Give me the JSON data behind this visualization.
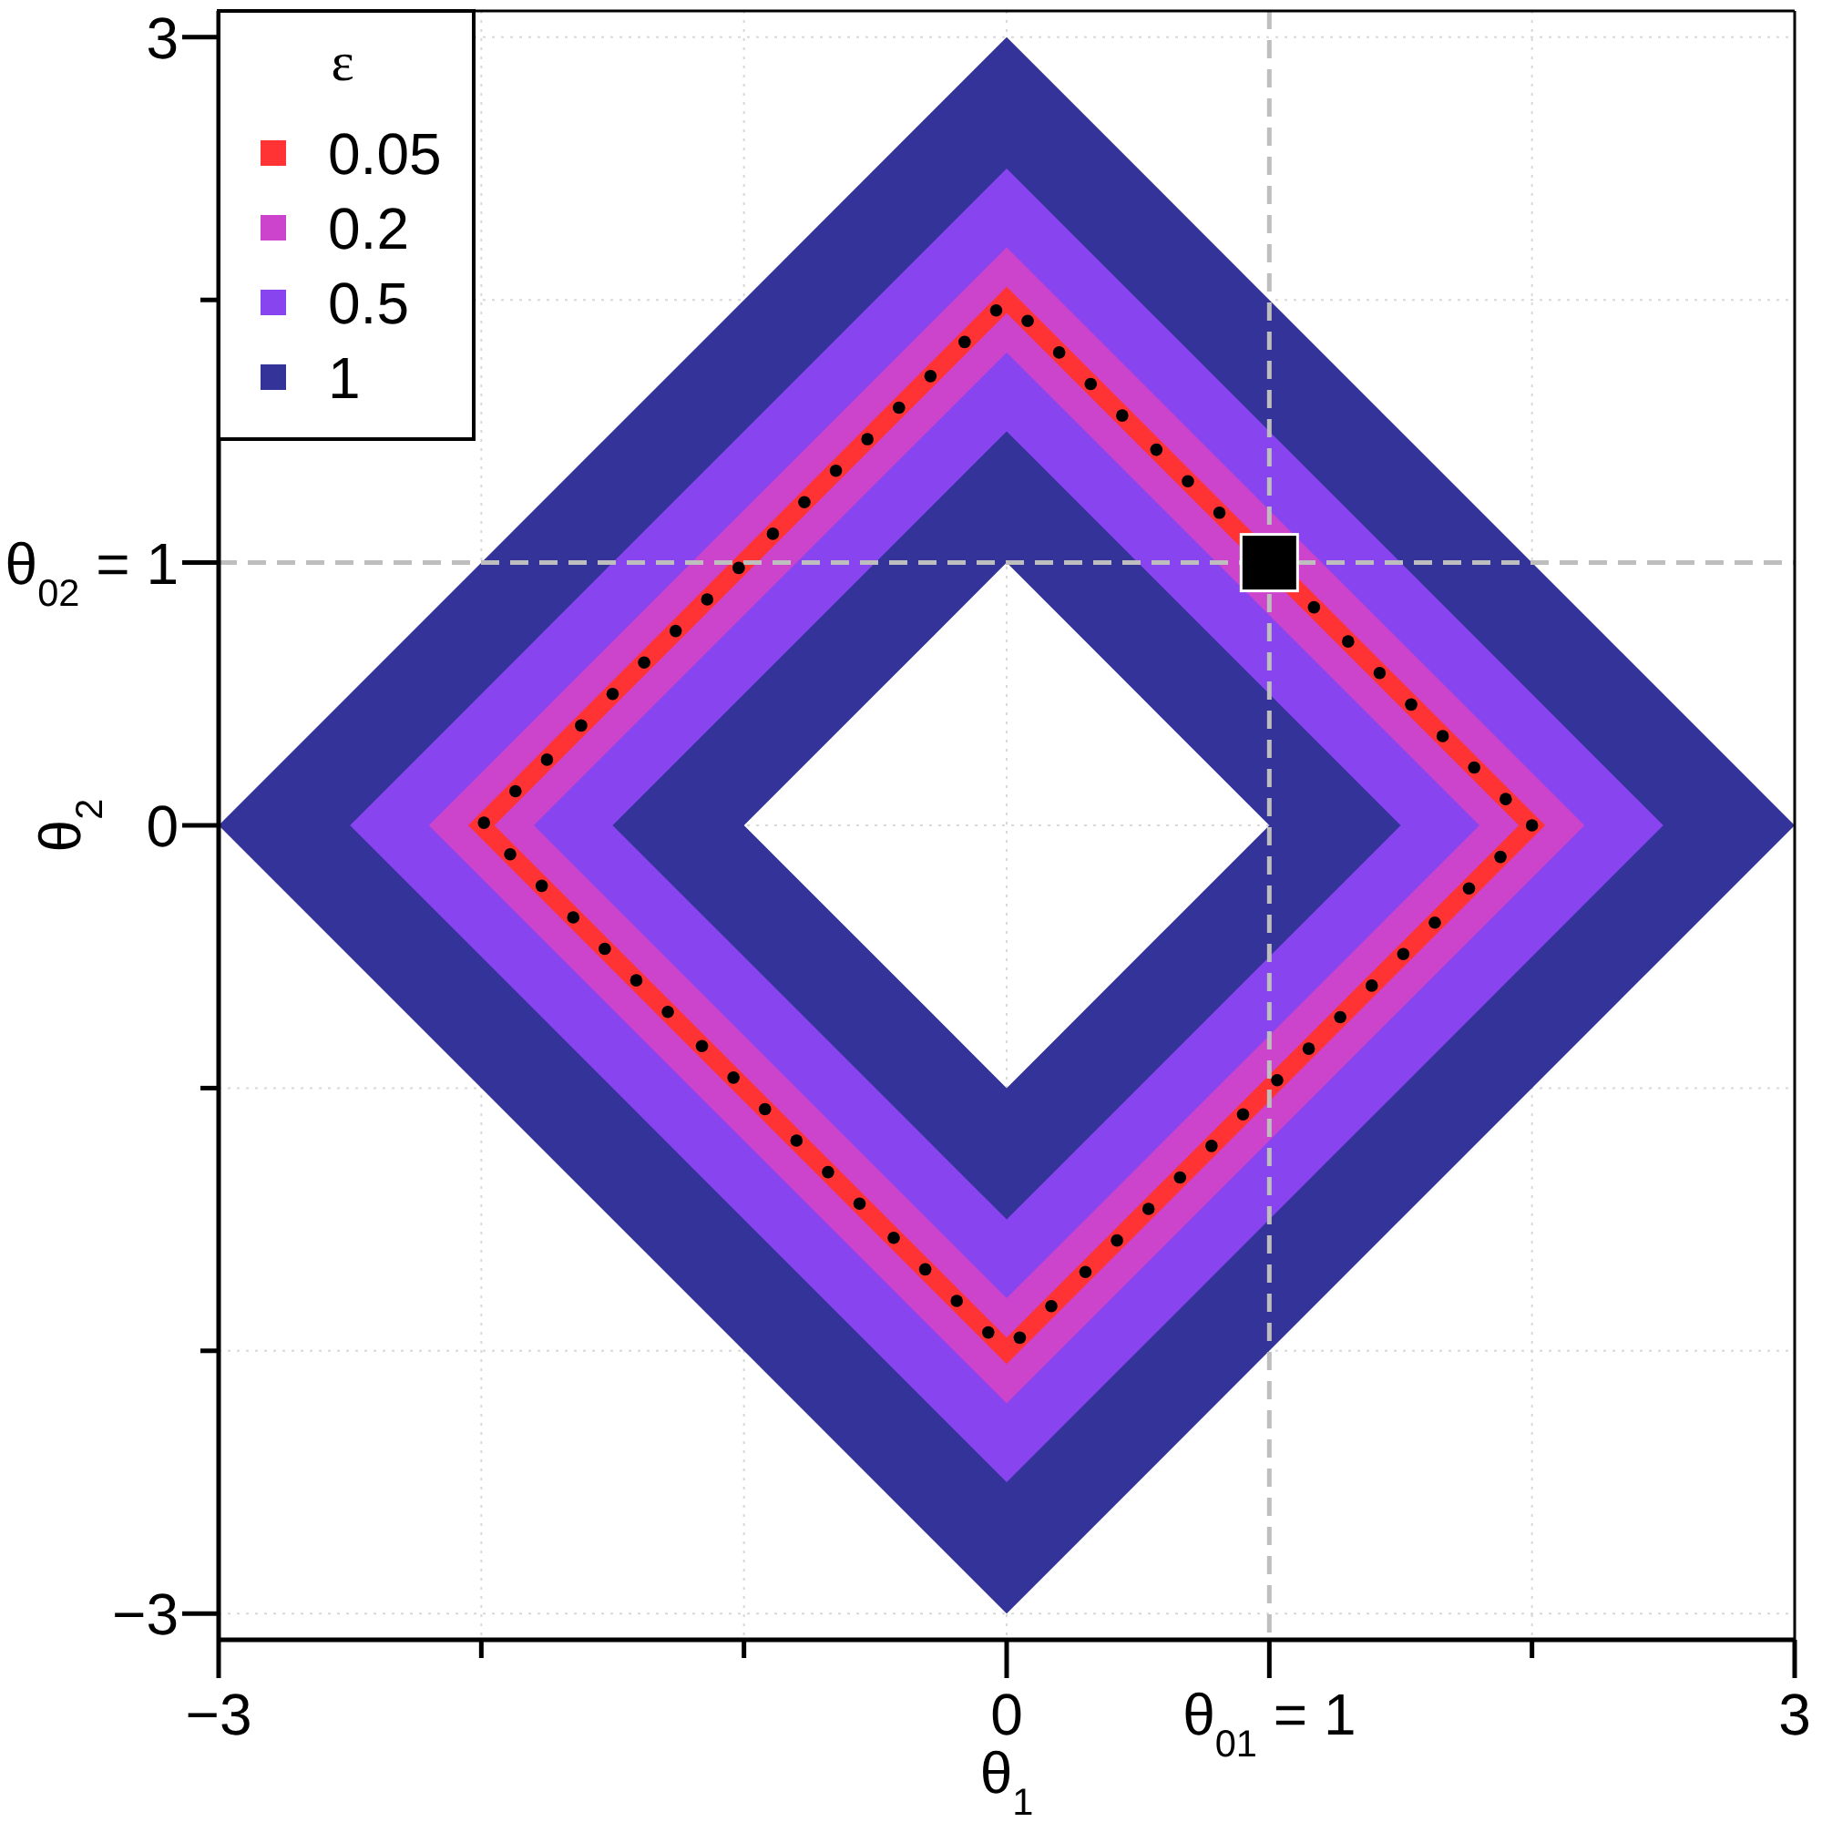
{
  "chart_data": {
    "type": "area",
    "xlabel": "θ$_{1}$",
    "ylabel": "θ$_{2}$",
    "legend_title": "ε",
    "xlim": [
      -3,
      3
    ],
    "ylim": [
      -3.1,
      3.1
    ],
    "xticks": [
      -3,
      {
        "value": -2,
        "label": null
      },
      {
        "value": -1,
        "label": null
      },
      0,
      {
        "value": 2,
        "label": null
      },
      3
    ],
    "yticks": [
      -3,
      {
        "value": -2,
        "label": null
      },
      {
        "value": -1,
        "label": null
      },
      0,
      {
        "value": 2,
        "label": null
      },
      3
    ],
    "grid": true,
    "legend": "top left",
    "ref_lines": [
      {
        "axis": "x",
        "value": 1,
        "label": "θ$_{01}$ = 1",
        "color": "#bebebe",
        "line_style": "dashed"
      },
      {
        "axis": "y",
        "value": 1,
        "label": "θ$_{02}$ = 1",
        "color": "#bebebe",
        "line_style": "dashed"
      }
    ],
    "series": [
      {
        "name": "0.05",
        "color": "#ff3333",
        "x": [
          -2.05,
          0,
          2.05,
          0,
          -2.05,
          -1.95,
          0,
          1.95,
          0,
          -1.95
        ],
        "values": [
          0,
          2.05,
          0,
          -2.05,
          0,
          0,
          -1.95,
          0,
          1.95,
          0
        ]
      },
      {
        "name": "0.2",
        "color": "#cc44cc",
        "x": [
          -2.2,
          0,
          2.2,
          0,
          -2.2,
          -1.8,
          0,
          1.8,
          0,
          -1.8
        ],
        "values": [
          0,
          2.2,
          0,
          -2.2,
          0,
          0,
          -1.8,
          0,
          1.8,
          0
        ]
      },
      {
        "name": "0.5",
        "color": "#8844ee",
        "x": [
          -2.5,
          0,
          2.5,
          0,
          -2.5,
          -1.5,
          0,
          1.5,
          0,
          -1.5
        ],
        "values": [
          0,
          2.5,
          0,
          -2.5,
          0,
          0,
          -1.5,
          0,
          1.5,
          0
        ]
      },
      {
        "name": "1",
        "color": "#333399",
        "x": [
          -3,
          0,
          3,
          0,
          -3,
          -1,
          0,
          1,
          0,
          -1
        ],
        "values": [
          0,
          3,
          0,
          -3,
          0,
          0,
          -1,
          0,
          1,
          0
        ]
      },
      {
        "type": "scatter",
        "color": "#000000",
        "marker": "circle",
        "x": [
          -1.99,
          -1.87,
          -1.75,
          -1.62,
          -1.5,
          -1.38,
          -1.26,
          -1.14,
          -1.02,
          -0.89,
          -0.77,
          -0.65,
          -0.53,
          -0.41,
          -0.29,
          -0.16,
          -0.04,
          0.08,
          0.2,
          0.32,
          0.44,
          0.57,
          0.69,
          0.81,
          1.17,
          1.3,
          1.42,
          1.54,
          1.66,
          1.78,
          1.9,
          2.0,
          1.88,
          1.76,
          1.63,
          1.51,
          1.39,
          1.27,
          1.15,
          1.03,
          0.9,
          0.78,
          0.66,
          0.54,
          0.42,
          0.3,
          0.17,
          0.05,
          -0.07,
          -0.19,
          -0.31,
          -0.43,
          -0.56,
          -0.68,
          -0.8,
          -0.92,
          -1.04,
          -1.16,
          -1.29,
          -1.41,
          -1.53,
          -1.65,
          -1.77,
          -1.89
        ],
        "values": [
          0.01,
          0.13,
          0.25,
          0.38,
          0.5,
          0.62,
          0.74,
          0.86,
          0.98,
          1.11,
          1.23,
          1.35,
          1.47,
          1.59,
          1.71,
          1.84,
          1.96,
          1.92,
          1.8,
          1.68,
          1.56,
          1.43,
          1.31,
          1.19,
          0.83,
          0.7,
          0.58,
          0.46,
          0.34,
          0.22,
          0.1,
          0,
          -0.12,
          -0.24,
          -0.37,
          -0.49,
          -0.61,
          -0.73,
          -0.85,
          -0.97,
          -1.1,
          -1.22,
          -1.34,
          -1.46,
          -1.58,
          -1.7,
          -1.83,
          -1.95,
          -1.93,
          -1.81,
          -1.69,
          -1.57,
          -1.44,
          -1.32,
          -1.2,
          -1.08,
          -0.96,
          -0.84,
          -0.71,
          -0.59,
          -0.47,
          -0.35,
          -0.23,
          -0.11
        ]
      },
      {
        "type": "scatter",
        "color": "#000000",
        "marker": "square",
        "x": [
          1
        ],
        "values": [
          1
        ]
      }
    ]
  }
}
